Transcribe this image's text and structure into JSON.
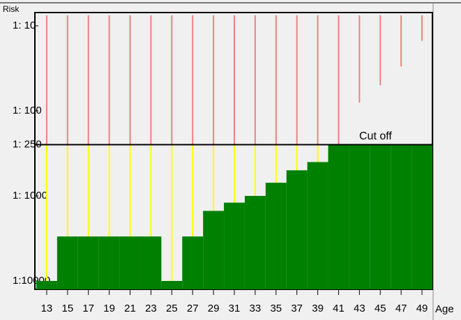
{
  "chart_data": {
    "type": "bar",
    "ylabel": "Risk",
    "xlabel": "Age",
    "categories": [
      "13",
      "15",
      "17",
      "19",
      "21",
      "23",
      "25",
      "27",
      "29",
      "31",
      "33",
      "35",
      "37",
      "39",
      "41",
      "43",
      "45",
      "47",
      "49"
    ],
    "values": [
      10000,
      3000,
      3000,
      3000,
      3000,
      3000,
      10000,
      3000,
      1500,
      1200,
      1000,
      700,
      500,
      400,
      250,
      80,
      50,
      30,
      15
    ],
    "color": "#008000",
    "above_color": "#f08080",
    "below_color": "#ffff00",
    "cutoff": 250,
    "cutoff_label": "Cut off",
    "ylim": [
      10,
      10000
    ],
    "log_scale": true,
    "yticks": [
      {
        "value": 10,
        "label": "1: 10"
      },
      {
        "value": 100,
        "label": "1: 100"
      },
      {
        "value": 250,
        "label": "1: 250"
      },
      {
        "value": 1000,
        "label": "1: 1000"
      },
      {
        "value": 10000,
        "label": "1:10000"
      }
    ]
  }
}
